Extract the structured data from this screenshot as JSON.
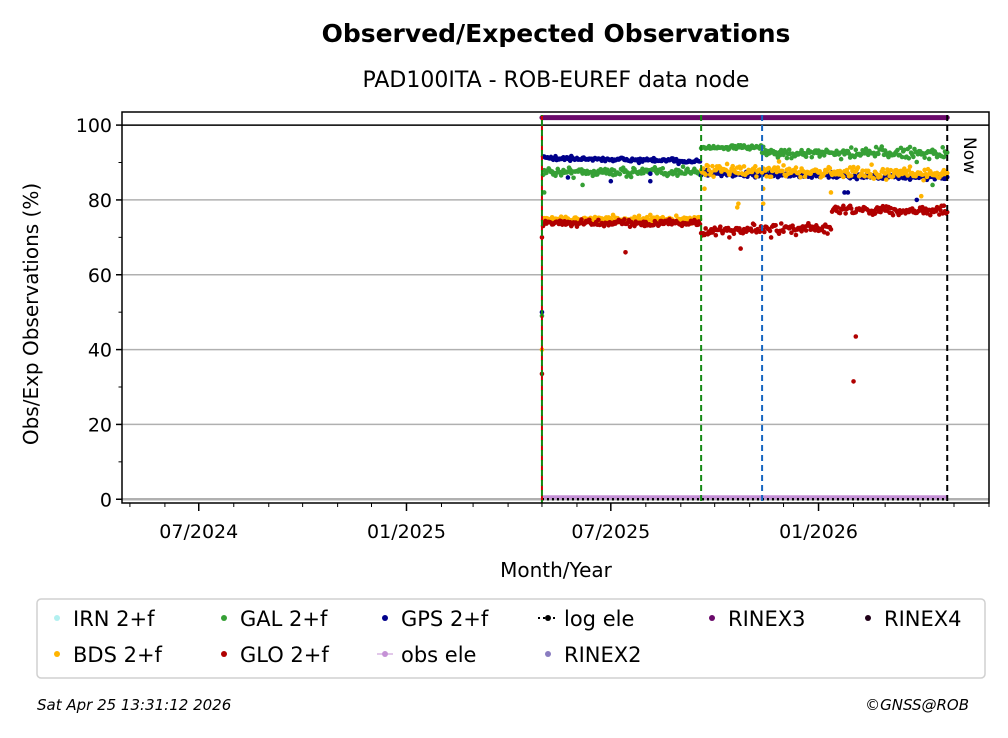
{
  "chart_data": {
    "type": "scatter",
    "title": "Observed/Expected Observations",
    "subtitle": "PAD100ITA - ROB-EUREF data node",
    "xlabel": "Month/Year",
    "ylabel": "Obs/Exp Observations (%)",
    "x_unit": "days since 2024-07-01",
    "xlim": [
      -68,
      700
    ],
    "ylim": [
      -1,
      103.5
    ],
    "x_ticks": [
      {
        "day": 0,
        "label": "07/2024"
      },
      {
        "day": 184,
        "label": "01/2025"
      },
      {
        "day": 365,
        "label": "07/2025"
      },
      {
        "day": 549,
        "label": "01/2026"
      }
    ],
    "y_ticks": [
      0,
      20,
      40,
      60,
      80,
      100
    ],
    "grid": "y",
    "legend_position": "bottom",
    "now_label": "Now",
    "vertical_lines": [
      {
        "day": 304,
        "color": "#d00000"
      },
      {
        "day": 304,
        "color": "#138a13"
      },
      {
        "day": 445,
        "color": "#138a13"
      },
      {
        "day": 499,
        "color": "#1565c0"
      },
      {
        "day": 663,
        "color": "#000000"
      }
    ],
    "series": [
      {
        "name": "IRN 2+f",
        "color": "#b2f0f0",
        "marker": "dot",
        "segments": [],
        "outliers": []
      },
      {
        "name": "GAL 2+f",
        "color": "#36a036",
        "marker": "dot",
        "segments": [
          {
            "start": 305,
            "end": 444,
            "from": 87.5,
            "to": 87.5,
            "spread": 1.0
          },
          {
            "start": 445,
            "end": 498,
            "from": 94,
            "to": 94,
            "spread": 0.5
          },
          {
            "start": 499,
            "end": 663,
            "from": 92.5,
            "to": 92.5,
            "spread": 1.3
          }
        ],
        "outliers": [
          [
            304,
            49
          ],
          [
            306,
            82
          ],
          [
            340,
            84
          ],
          [
            505,
            88
          ],
          [
            650,
            84
          ]
        ]
      },
      {
        "name": "GPS 2+f",
        "color": "#00008b",
        "marker": "dot",
        "segments": [
          {
            "start": 305,
            "end": 444,
            "from": 91.2,
            "to": 90.3,
            "spread": 0.5
          },
          {
            "start": 445,
            "end": 663,
            "from": 87,
            "to": 86,
            "spread": 0.6
          }
        ],
        "outliers": [
          [
            304,
            50
          ],
          [
            327,
            86
          ],
          [
            365,
            85
          ],
          [
            400,
            85
          ],
          [
            400,
            87
          ],
          [
            572,
            82
          ],
          [
            575,
            82
          ],
          [
            636,
            80
          ]
        ]
      },
      {
        "name": "BDS 2+f",
        "color": "#ffb400",
        "marker": "dot",
        "segments": [
          {
            "start": 305,
            "end": 444,
            "from": 74.8,
            "to": 74.8,
            "spread": 0.8
          },
          {
            "start": 445,
            "end": 663,
            "from": 88,
            "to": 87,
            "spread": 1.4
          }
        ],
        "outliers": [
          [
            304,
            40
          ],
          [
            448,
            83
          ],
          [
            477,
            78
          ],
          [
            478,
            79
          ],
          [
            500,
            83
          ],
          [
            500,
            79
          ],
          [
            560,
            82
          ],
          [
            640,
            81
          ],
          [
            655,
            78
          ]
        ]
      },
      {
        "name": "GLO 2+f",
        "color": "#b00000",
        "marker": "dot",
        "segments": [
          {
            "start": 305,
            "end": 444,
            "from": 73.8,
            "to": 73.8,
            "spread": 0.8
          },
          {
            "start": 445,
            "end": 560,
            "from": 71.5,
            "to": 72.5,
            "spread": 1.2
          },
          {
            "start": 561,
            "end": 663,
            "from": 77.5,
            "to": 77,
            "spread": 1.0
          }
        ],
        "outliers": [
          [
            304,
            33.5
          ],
          [
            304,
            70
          ],
          [
            378,
            66
          ],
          [
            480,
            67
          ],
          [
            580,
            31.5
          ],
          [
            582,
            43.5
          ]
        ]
      },
      {
        "name": "obs ele",
        "color": "#c591d6",
        "marker": "line",
        "segments": [
          {
            "start": 304,
            "end": 663,
            "from": 0,
            "to": 0,
            "spread": 0
          }
        ],
        "outliers": []
      },
      {
        "name": "log ele",
        "color": "#000000",
        "marker": "dotted",
        "segments": [
          {
            "start": 304,
            "end": 663,
            "from": 0,
            "to": 0,
            "spread": 0
          }
        ],
        "outliers": []
      },
      {
        "name": "RINEX2",
        "color": "#8a7cc0",
        "marker": "dot",
        "segments": [],
        "outliers": []
      },
      {
        "name": "RINEX3",
        "color": "#6b0a6b",
        "marker": "dot",
        "segments": [
          {
            "start": 304,
            "end": 663,
            "from": 102,
            "to": 102,
            "spread": 0
          }
        ],
        "outliers": []
      },
      {
        "name": "RINEX4",
        "color": "#200018",
        "marker": "dot",
        "segments": [],
        "outliers": []
      }
    ]
  },
  "footer": {
    "timestamp": "Sat Apr 25 13:31:12 2026",
    "copyright": "©GNSS@ROB"
  }
}
